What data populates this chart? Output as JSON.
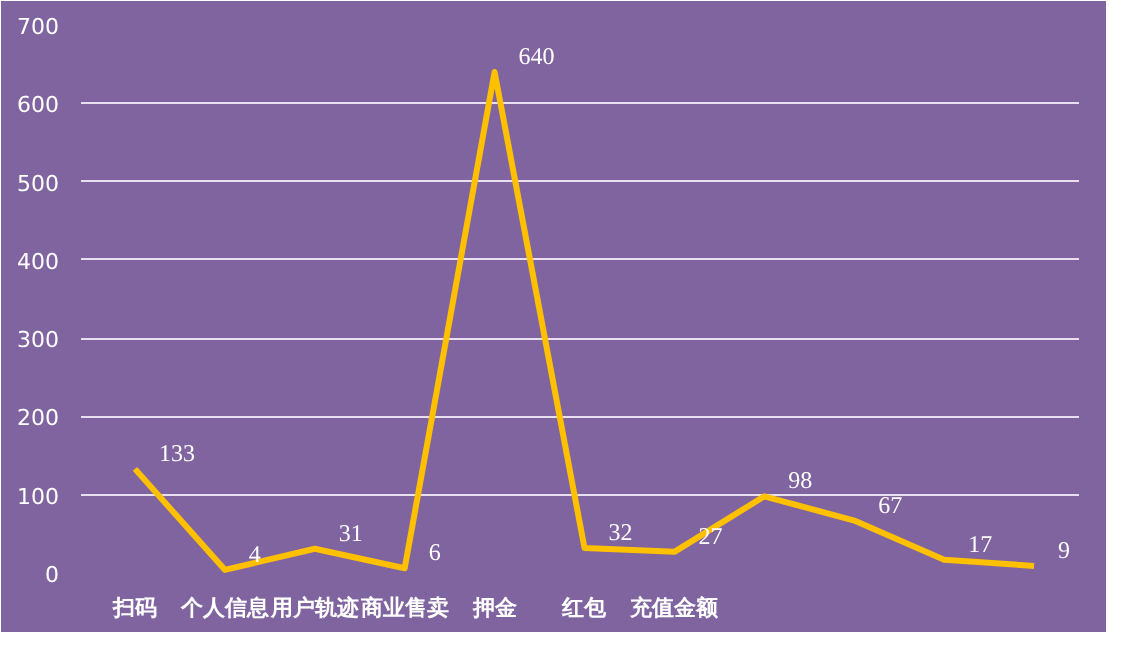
{
  "chart_data": {
    "type": "line",
    "categories": [
      "扫码",
      "个人信息",
      "用户轨迹",
      "商业售卖",
      "押金",
      "红包",
      "充值金额",
      null,
      null,
      null,
      null
    ],
    "series": [
      {
        "color": "#ffc000",
        "values": [
          133,
          4,
          31,
          6,
          640,
          32,
          27,
          98,
          67,
          17,
          9
        ]
      }
    ],
    "ylim": [
      0,
      700
    ],
    "yticks": [
      0,
      100,
      200,
      300,
      400,
      500,
      600,
      700
    ],
    "grid": "y",
    "data_labels": true,
    "marker": "none",
    "line_style": "solid"
  }
}
